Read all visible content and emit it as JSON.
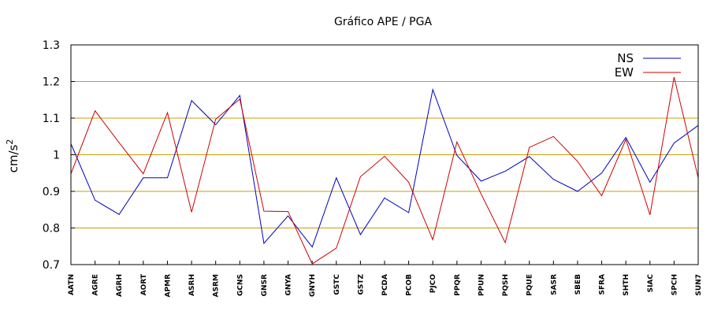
{
  "chart_data": {
    "type": "line",
    "title": "Gráfico  APE / PGA",
    "ylabel": "cm/s",
    "ylabel_exponent": "2",
    "xlabel": "",
    "ylim": [
      0.7,
      1.3
    ],
    "yticks": [
      "0.7",
      "0.8",
      "0.9",
      "1",
      "1.1",
      "1.2",
      "1.3"
    ],
    "grid": "horizontal",
    "grid_color": "#c8a000",
    "legend_position": "top-right",
    "categories": [
      "AATN",
      "AGRE",
      "AGRH",
      "AORT",
      "APMR",
      "ASRH",
      "ASRM",
      "GCNS",
      "GNSR",
      "GNYA",
      "GNYH",
      "GSTC",
      "GSTZ",
      "PCDA",
      "PCOB",
      "PJCO",
      "PPQR",
      "PPUN",
      "PQSH",
      "PQUE",
      "SASR",
      "SBEB",
      "SFRA",
      "SHTH",
      "SIAC",
      "SPCH",
      "SUN7"
    ],
    "series": [
      {
        "name": "NS",
        "color": "#0000c0",
        "values": [
          1.03,
          0.876,
          0.837,
          0.937,
          0.937,
          1.148,
          1.082,
          1.162,
          0.758,
          0.833,
          0.748,
          0.937,
          0.782,
          0.882,
          0.842,
          1.178,
          0.998,
          0.928,
          0.955,
          0.995,
          0.933,
          0.9,
          0.95,
          1.047,
          0.925,
          1.032,
          1.08
        ]
      },
      {
        "name": "EW",
        "color": "#d00000",
        "values": [
          0.948,
          1.12,
          1.033,
          0.948,
          1.115,
          0.843,
          1.097,
          1.152,
          0.846,
          0.845,
          0.702,
          0.745,
          0.94,
          0.996,
          0.925,
          0.768,
          1.035,
          0.893,
          0.76,
          1.02,
          1.05,
          0.982,
          0.888,
          1.042,
          0.836,
          1.212,
          0.937
        ]
      }
    ]
  }
}
